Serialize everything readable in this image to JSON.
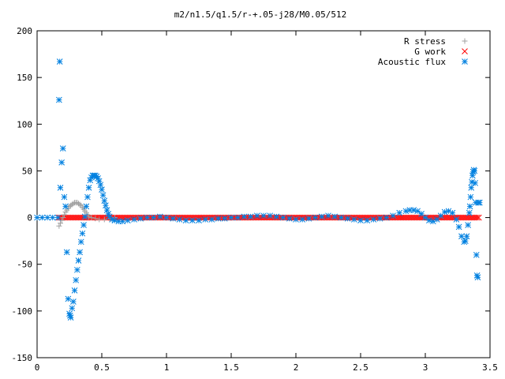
{
  "chart_data": {
    "type": "scatter",
    "title": "m2/n1.5/q1.5/r-+.05-j28/M0.05/512",
    "xlabel": "",
    "ylabel": "",
    "xlim": [
      0,
      3.5
    ],
    "ylim": [
      -150,
      200
    ],
    "x_ticks": [
      "0",
      "0.5",
      "1",
      "1.5",
      "2",
      "2.5",
      "3",
      "3.5"
    ],
    "y_ticks": [
      "200",
      "150",
      "100",
      "50",
      "0",
      "-50",
      "-100",
      "-150"
    ],
    "grid": false,
    "legend_position": "top-right",
    "series": [
      {
        "name": "R stress",
        "marker": "+",
        "color": "#a0a0a0",
        "points": [
          [
            0.17,
            -9
          ],
          [
            0.18,
            -6
          ],
          [
            0.19,
            -3
          ],
          [
            0.2,
            0
          ],
          [
            0.21,
            3
          ],
          [
            0.22,
            6
          ],
          [
            0.23,
            8
          ],
          [
            0.24,
            10
          ],
          [
            0.25,
            12
          ],
          [
            0.26,
            13
          ],
          [
            0.27,
            14
          ],
          [
            0.28,
            15
          ],
          [
            0.29,
            16
          ],
          [
            0.3,
            16
          ],
          [
            0.31,
            16
          ],
          [
            0.32,
            15
          ],
          [
            0.33,
            14
          ],
          [
            0.34,
            13
          ],
          [
            0.35,
            11
          ],
          [
            0.36,
            9
          ],
          [
            0.37,
            7
          ],
          [
            0.38,
            5
          ],
          [
            0.39,
            3
          ],
          [
            0.4,
            1
          ],
          [
            0.42,
            0
          ],
          [
            0.45,
            -1
          ],
          [
            0.48,
            -2
          ],
          [
            0.52,
            -2
          ],
          [
            0.56,
            -1
          ],
          [
            0.6,
            0
          ]
        ]
      },
      {
        "name": "G work",
        "marker": "x",
        "color": "#ff0000",
        "x_range": [
          0.17,
          3.42
        ],
        "value": 0
      },
      {
        "name": "Acoustic flux",
        "marker": "*",
        "color": "#0080e0",
        "points": [
          [
            0.0,
            0
          ],
          [
            0.04,
            0
          ],
          [
            0.08,
            0
          ],
          [
            0.12,
            0
          ],
          [
            0.16,
            0
          ],
          [
            0.17,
            126
          ],
          [
            0.175,
            167
          ],
          [
            0.18,
            32
          ],
          [
            0.19,
            59
          ],
          [
            0.2,
            74
          ],
          [
            0.21,
            22
          ],
          [
            0.22,
            12
          ],
          [
            0.23,
            -37
          ],
          [
            0.24,
            -87
          ],
          [
            0.25,
            -103
          ],
          [
            0.255,
            -105
          ],
          [
            0.26,
            -107
          ],
          [
            0.27,
            -97
          ],
          [
            0.28,
            -90
          ],
          [
            0.29,
            -78
          ],
          [
            0.3,
            -67
          ],
          [
            0.31,
            -56
          ],
          [
            0.32,
            -46
          ],
          [
            0.33,
            -37
          ],
          [
            0.34,
            -26
          ],
          [
            0.35,
            -17
          ],
          [
            0.36,
            -8
          ],
          [
            0.37,
            1
          ],
          [
            0.38,
            12
          ],
          [
            0.39,
            22
          ],
          [
            0.4,
            32
          ],
          [
            0.41,
            40
          ],
          [
            0.42,
            43
          ],
          [
            0.43,
            45
          ],
          [
            0.44,
            45
          ],
          [
            0.45,
            45
          ],
          [
            0.46,
            44
          ],
          [
            0.47,
            42
          ],
          [
            0.48,
            39
          ],
          [
            0.49,
            35
          ],
          [
            0.5,
            30
          ],
          [
            0.51,
            24
          ],
          [
            0.52,
            18
          ],
          [
            0.53,
            13
          ],
          [
            0.54,
            8
          ],
          [
            0.55,
            4
          ],
          [
            0.56,
            1
          ],
          [
            0.58,
            -2
          ],
          [
            0.6,
            -3
          ],
          [
            0.63,
            -4
          ],
          [
            0.66,
            -4
          ],
          [
            0.7,
            -3
          ],
          [
            0.75,
            -2
          ],
          [
            0.8,
            -1
          ],
          [
            0.85,
            0
          ],
          [
            0.9,
            0
          ],
          [
            0.95,
            1
          ],
          [
            1.0,
            0
          ],
          [
            1.05,
            -1
          ],
          [
            1.1,
            -2
          ],
          [
            1.15,
            -3
          ],
          [
            1.2,
            -3
          ],
          [
            1.25,
            -3
          ],
          [
            1.3,
            -2
          ],
          [
            1.35,
            -2
          ],
          [
            1.4,
            -1
          ],
          [
            1.45,
            -1
          ],
          [
            1.5,
            0
          ],
          [
            1.55,
            0
          ],
          [
            1.6,
            1
          ],
          [
            1.65,
            1
          ],
          [
            1.7,
            2
          ],
          [
            1.75,
            2
          ],
          [
            1.8,
            2
          ],
          [
            1.85,
            1
          ],
          [
            1.9,
            0
          ],
          [
            1.95,
            -1
          ],
          [
            2.0,
            -2
          ],
          [
            2.05,
            -2
          ],
          [
            2.1,
            -1
          ],
          [
            2.15,
            0
          ],
          [
            2.2,
            1
          ],
          [
            2.25,
            2
          ],
          [
            2.3,
            1
          ],
          [
            2.35,
            0
          ],
          [
            2.4,
            -1
          ],
          [
            2.45,
            -2
          ],
          [
            2.5,
            -3
          ],
          [
            2.55,
            -3
          ],
          [
            2.6,
            -2
          ],
          [
            2.65,
            -1
          ],
          [
            2.7,
            0
          ],
          [
            2.75,
            2
          ],
          [
            2.8,
            5
          ],
          [
            2.85,
            7
          ],
          [
            2.88,
            8
          ],
          [
            2.91,
            8
          ],
          [
            2.94,
            7
          ],
          [
            2.97,
            4
          ],
          [
            3.0,
            0
          ],
          [
            3.03,
            -3
          ],
          [
            3.06,
            -4
          ],
          [
            3.09,
            -2
          ],
          [
            3.12,
            2
          ],
          [
            3.15,
            6
          ],
          [
            3.18,
            7
          ],
          [
            3.21,
            5
          ],
          [
            3.24,
            -2
          ],
          [
            3.26,
            -10
          ],
          [
            3.28,
            -20
          ],
          [
            3.3,
            -26
          ],
          [
            3.31,
            -25
          ],
          [
            3.32,
            -20
          ],
          [
            3.33,
            -8
          ],
          [
            3.34,
            5
          ],
          [
            3.345,
            12
          ],
          [
            3.35,
            22
          ],
          [
            3.355,
            32
          ],
          [
            3.36,
            38
          ],
          [
            3.365,
            45
          ],
          [
            3.37,
            49
          ],
          [
            3.375,
            51
          ],
          [
            3.38,
            50
          ],
          [
            3.385,
            37
          ],
          [
            3.39,
            16
          ],
          [
            3.395,
            -40
          ],
          [
            3.4,
            -62
          ],
          [
            3.405,
            -64
          ],
          [
            3.41,
            16
          ],
          [
            3.42,
            16
          ]
        ]
      }
    ]
  }
}
